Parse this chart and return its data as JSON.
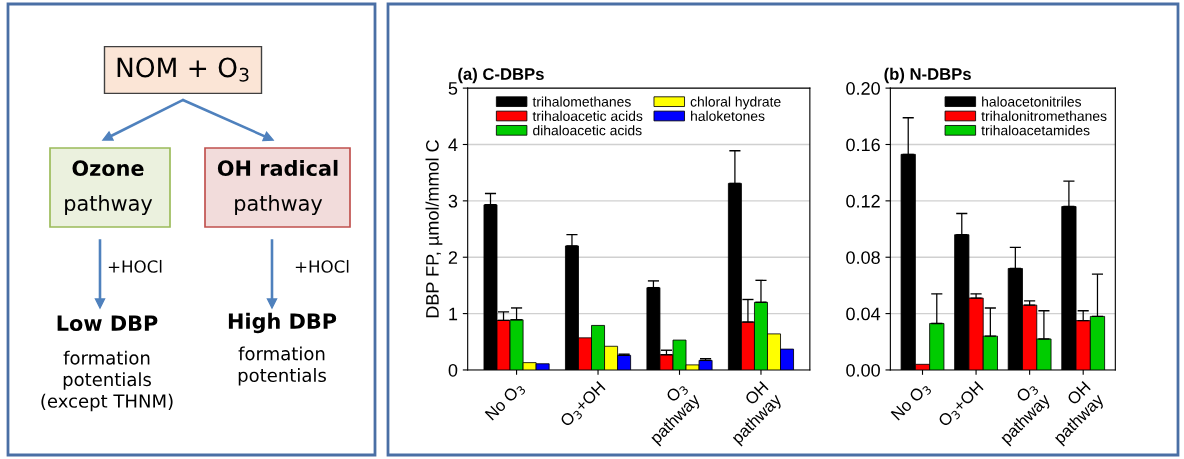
{
  "chart_data": [
    {
      "type": "other",
      "annotations": [
        "NOM + O$_{3}$",
        "Ozone",
        "pathway",
        "OH radical",
        "pathway",
        "+HOCl",
        "+HOCl",
        "Low DBP",
        "formation\npotentials\n(except THNM)",
        "High DBP",
        "formation\npotentials"
      ]
    },
    {
      "type": "bar",
      "title": "(a) C-DBPs",
      "ylabel": "DBP FP, µmol/mmol C",
      "categories": [
        "No O$_{3}$",
        "O$_{3}$+OH",
        "O$_{3}$\npathway",
        "OH\npathway"
      ],
      "ylim": [
        0,
        5
      ],
      "yticks": [
        0,
        1,
        2,
        3,
        4,
        5
      ],
      "grid": "y",
      "legend": "top",
      "series": [
        {
          "name": "trihalomethanes",
          "color": "#000000",
          "values": [
            2.93,
            2.2,
            1.46,
            3.31
          ],
          "errors": [
            [
              2.93,
              3.13
            ],
            [
              2.2,
              2.4
            ],
            [
              1.46,
              1.58
            ],
            [
              3.31,
              3.89
            ]
          ]
        },
        {
          "name": "trihaloacetic acids",
          "color": "#ff0000",
          "values": [
            0.88,
            0.57,
            0.27,
            0.85
          ],
          "errors": [
            [
              0.88,
              1.03
            ],
            null,
            [
              0.27,
              0.35
            ],
            [
              0.85,
              1.25
            ]
          ]
        },
        {
          "name": "dihaloacetic acids",
          "color": "#00cc00",
          "values": [
            0.89,
            0.79,
            0.53,
            1.2
          ],
          "errors": [
            [
              0.89,
              1.1
            ],
            null,
            null,
            [
              1.2,
              1.59
            ]
          ]
        },
        {
          "name": "chloral hydrate",
          "color": "#ffff00",
          "values": [
            0.13,
            0.42,
            0.09,
            0.64
          ]
        },
        {
          "name": "haloketones",
          "color": "#0000ff",
          "values": [
            0.11,
            0.26,
            0.17,
            0.37
          ],
          "errors": [
            null,
            [
              0.26,
              0.28
            ],
            [
              0.17,
              0.2
            ],
            null
          ]
        }
      ]
    },
    {
      "type": "bar",
      "title": "(b) N-DBPs",
      "categories": [
        "No O$_{3}$",
        "O$_{3}$+OH",
        "O$_{3}$\npathway",
        "OH\npathway"
      ],
      "ylim": [
        0,
        0.2
      ],
      "yticks": [
        {
          "value": 0,
          "label": "0.00"
        },
        {
          "value": 0.04,
          "label": "0.04"
        },
        {
          "value": 0.08,
          "label": "0.08"
        },
        {
          "value": 0.12,
          "label": "0.12"
        },
        {
          "value": 0.16,
          "label": "0.16"
        },
        {
          "value": 0.2,
          "label": "0.20"
        }
      ],
      "grid": "y",
      "legend": "top right",
      "series": [
        {
          "name": "haloacetonitriles",
          "color": "#000000",
          "values": [
            0.153,
            0.096,
            0.072,
            0.116
          ],
          "errors": [
            [
              0.153,
              0.179
            ],
            [
              0.096,
              0.111
            ],
            [
              0.072,
              0.087
            ],
            [
              0.116,
              0.134
            ]
          ]
        },
        {
          "name": "trihalonitromethanes",
          "color": "#ff0000",
          "values": [
            0.004,
            0.051,
            0.046,
            0.035
          ],
          "errors": [
            null,
            [
              0.051,
              0.054
            ],
            [
              0.046,
              0.049
            ],
            [
              0.035,
              0.042
            ]
          ]
        },
        {
          "name": "trihaloacetamides",
          "color": "#00cc00",
          "values": [
            0.033,
            0.024,
            0.022,
            0.038
          ],
          "errors": [
            [
              0.033,
              0.054
            ],
            [
              0.024,
              0.044
            ],
            [
              0.022,
              0.042
            ],
            [
              0.038,
              0.068
            ]
          ]
        }
      ]
    }
  ]
}
